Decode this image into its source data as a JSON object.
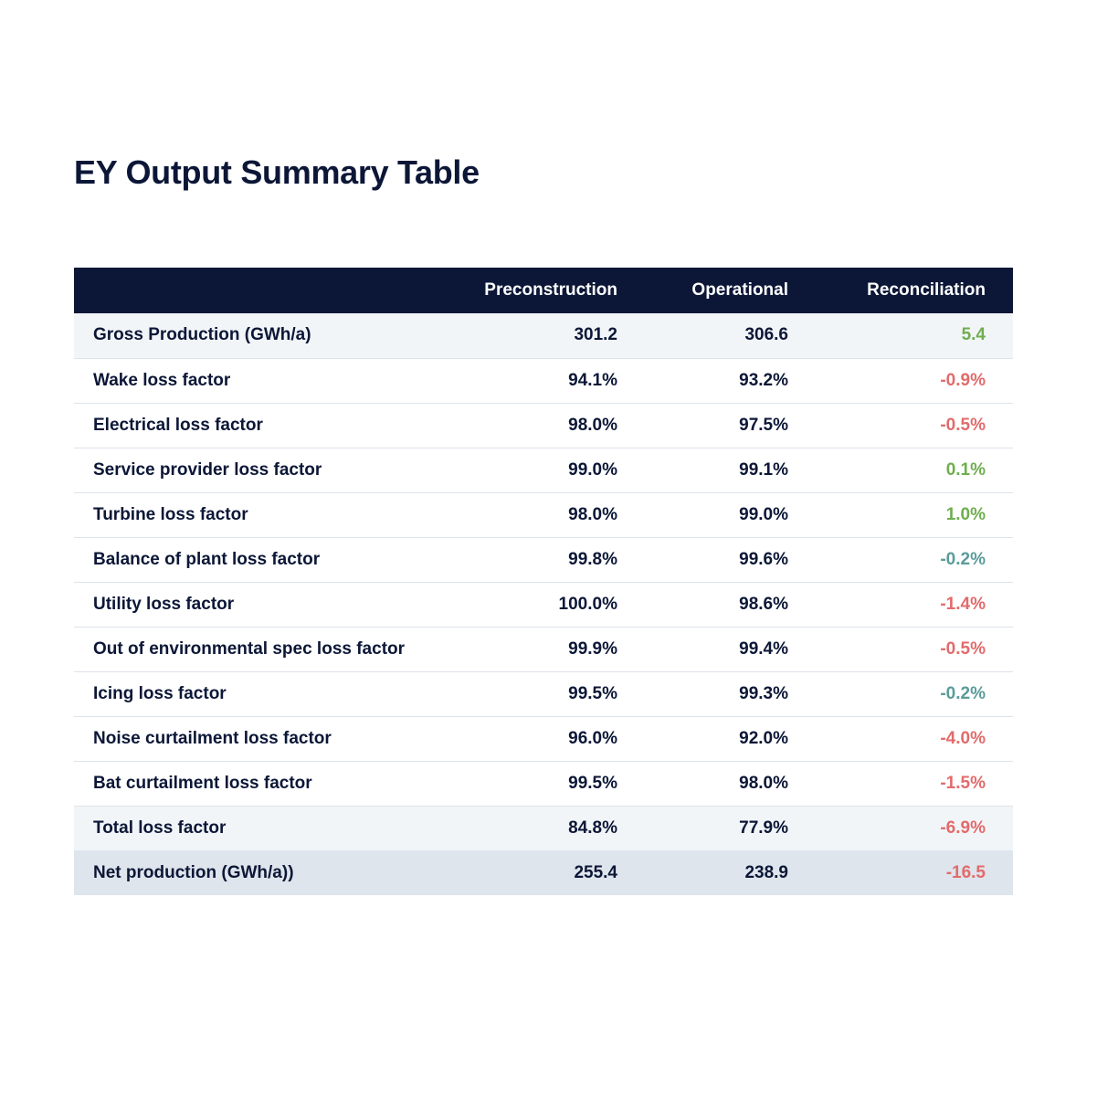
{
  "title": "EY Output Summary Table",
  "colors": {
    "header_bg": "#0c1737",
    "positive": "#6fae4e",
    "negative": "#e26b6b",
    "neutral": "#5a9c9a"
  },
  "table": {
    "headers": {
      "label": "",
      "preconstruction": "Preconstruction",
      "operational": "Operational",
      "reconciliation": "Reconciliation"
    },
    "rows": [
      {
        "label": "Gross Production (GWh/a)",
        "pre": "301.2",
        "op": "306.6",
        "rec": "5.4",
        "rec_status": "positive"
      },
      {
        "label": "Wake loss factor",
        "pre": "94.1%",
        "op": "93.2%",
        "rec": "-0.9%",
        "rec_status": "negative"
      },
      {
        "label": "Electrical loss factor",
        "pre": "98.0%",
        "op": "97.5%",
        "rec": "-0.5%",
        "rec_status": "negative"
      },
      {
        "label": "Service provider loss factor",
        "pre": "99.0%",
        "op": "99.1%",
        "rec": "0.1%",
        "rec_status": "positive"
      },
      {
        "label": "Turbine loss factor",
        "pre": "98.0%",
        "op": "99.0%",
        "rec": "1.0%",
        "rec_status": "positive"
      },
      {
        "label": "Balance of plant loss factor",
        "pre": "99.8%",
        "op": "99.6%",
        "rec": "-0.2%",
        "rec_status": "neutral"
      },
      {
        "label": "Utility loss factor",
        "pre": "100.0%",
        "op": "98.6%",
        "rec": "-1.4%",
        "rec_status": "negative"
      },
      {
        "label": "Out of environmental spec loss factor",
        "pre": "99.9%",
        "op": "99.4%",
        "rec": "-0.5%",
        "rec_status": "negative"
      },
      {
        "label": "Icing loss factor",
        "pre": "99.5%",
        "op": "99.3%",
        "rec": "-0.2%",
        "rec_status": "neutral"
      },
      {
        "label": "Noise curtailment loss factor",
        "pre": "96.0%",
        "op": "92.0%",
        "rec": "-4.0%",
        "rec_status": "negative"
      },
      {
        "label": "Bat curtailment loss factor",
        "pre": "99.5%",
        "op": "98.0%",
        "rec": "-1.5%",
        "rec_status": "negative"
      },
      {
        "label": "Total loss factor",
        "pre": "84.8%",
        "op": "77.9%",
        "rec": "-6.9%",
        "rec_status": "negative"
      },
      {
        "label": "Net production (GWh/a))",
        "pre": "255.4",
        "op": "238.9",
        "rec": "-16.5",
        "rec_status": "negative"
      }
    ]
  }
}
